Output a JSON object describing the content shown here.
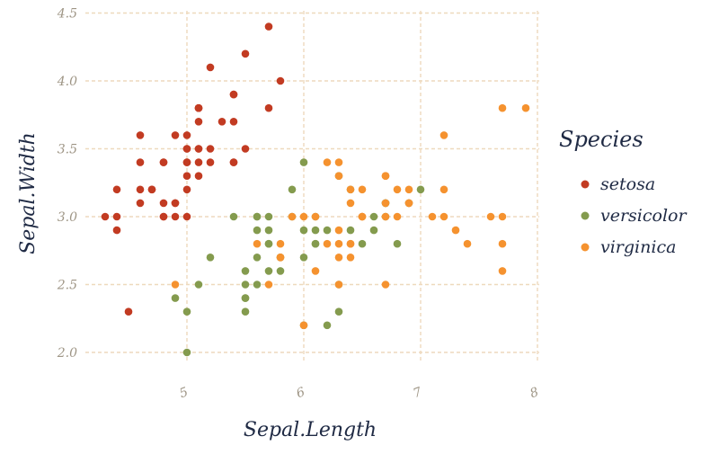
{
  "chart_data": {
    "type": "scatter",
    "xlabel": "Sepal.Length",
    "ylabel": "Sepal.Width",
    "xlim": [
      4.3,
      7.9
    ],
    "ylim": [
      2.0,
      4.4
    ],
    "x_ticks": [
      5,
      6,
      7,
      8
    ],
    "x_tick_labels": [
      "5",
      "6",
      "7",
      "8"
    ],
    "y_ticks": [
      2.0,
      2.5,
      3.0,
      3.5,
      4.0,
      4.5
    ],
    "y_tick_labels": [
      "2.0",
      "2.5",
      "3.0",
      "3.5",
      "4.0",
      "4.5"
    ],
    "grid": true,
    "legend": {
      "title": "Species",
      "position": "right",
      "entries": [
        "setosa",
        "versicolor",
        "virginica"
      ]
    },
    "colors": {
      "setosa": "#c23b22",
      "versicolor": "#849b4e",
      "virginica": "#f5922f",
      "grid": "#eed9bd",
      "tick_text": "#9e9585",
      "title_text": "#1f2a44"
    },
    "series": [
      {
        "name": "setosa",
        "x": [
          5.1,
          4.9,
          4.7,
          4.6,
          5.0,
          5.4,
          4.6,
          5.0,
          4.4,
          4.9,
          5.4,
          4.8,
          4.8,
          4.3,
          5.8,
          5.7,
          5.4,
          5.1,
          5.7,
          5.1,
          5.4,
          5.1,
          4.6,
          5.1,
          4.8,
          5.0,
          5.0,
          5.2,
          5.2,
          4.7,
          4.8,
          5.4,
          5.2,
          5.5,
          4.9,
          5.0,
          5.5,
          4.9,
          4.4,
          5.1,
          5.0,
          4.5,
          4.4,
          5.0,
          5.1,
          4.8,
          5.1,
          4.6,
          5.3,
          5.0
        ],
        "y": [
          3.5,
          3.0,
          3.2,
          3.1,
          3.6,
          3.9,
          3.4,
          3.4,
          2.9,
          3.1,
          3.7,
          3.4,
          3.0,
          3.0,
          4.0,
          4.4,
          3.9,
          3.5,
          3.8,
          3.8,
          3.4,
          3.7,
          3.6,
          3.3,
          3.4,
          3.0,
          3.4,
          3.5,
          3.4,
          3.2,
          3.1,
          3.4,
          4.1,
          4.2,
          3.1,
          3.2,
          3.5,
          3.6,
          3.0,
          3.4,
          3.5,
          2.3,
          3.2,
          3.5,
          3.8,
          3.0,
          3.8,
          3.2,
          3.7,
          3.3
        ]
      },
      {
        "name": "versicolor",
        "x": [
          7.0,
          6.4,
          6.9,
          5.5,
          6.5,
          5.7,
          6.3,
          4.9,
          6.6,
          5.2,
          5.0,
          5.9,
          6.0,
          6.1,
          5.6,
          6.7,
          5.6,
          5.8,
          6.2,
          5.6,
          5.9,
          6.1,
          6.3,
          6.1,
          6.4,
          6.6,
          6.8,
          6.7,
          6.0,
          5.7,
          5.5,
          5.5,
          5.8,
          6.0,
          5.4,
          6.0,
          6.7,
          6.3,
          5.6,
          5.5,
          5.5,
          6.1,
          5.8,
          5.0,
          5.6,
          5.7,
          5.7,
          6.2,
          5.1,
          5.7
        ],
        "y": [
          3.2,
          3.2,
          3.1,
          2.3,
          2.8,
          2.8,
          3.3,
          2.4,
          2.9,
          2.7,
          2.0,
          3.0,
          2.2,
          2.9,
          2.9,
          3.1,
          3.0,
          2.7,
          2.2,
          2.5,
          3.2,
          2.8,
          2.5,
          2.8,
          2.9,
          3.0,
          2.8,
          3.0,
          2.9,
          2.6,
          2.4,
          2.4,
          2.7,
          2.7,
          3.0,
          3.4,
          3.1,
          2.3,
          3.0,
          2.5,
          2.6,
          3.0,
          2.6,
          2.3,
          2.7,
          3.0,
          2.9,
          2.9,
          2.5,
          2.8
        ]
      },
      {
        "name": "virginica",
        "x": [
          6.3,
          5.8,
          7.1,
          6.3,
          6.5,
          7.6,
          4.9,
          7.3,
          6.7,
          7.2,
          6.5,
          6.4,
          6.8,
          5.7,
          5.8,
          6.4,
          6.5,
          7.7,
          7.7,
          6.0,
          6.9,
          5.6,
          7.7,
          6.3,
          6.7,
          7.2,
          6.2,
          6.1,
          6.4,
          7.2,
          7.4,
          7.9,
          6.4,
          6.3,
          6.1,
          7.7,
          6.3,
          6.4,
          6.0,
          6.9,
          6.7,
          6.9,
          5.8,
          6.8,
          6.7,
          6.7,
          6.3,
          6.5,
          6.2,
          5.9
        ],
        "y": [
          3.3,
          2.7,
          3.0,
          2.9,
          3.0,
          3.0,
          2.5,
          2.9,
          2.5,
          3.6,
          3.2,
          2.7,
          3.0,
          2.5,
          2.8,
          3.2,
          3.0,
          3.8,
          2.6,
          2.2,
          3.2,
          2.8,
          2.8,
          2.7,
          3.3,
          3.2,
          2.8,
          3.0,
          2.8,
          3.0,
          2.8,
          3.8,
          2.8,
          2.8,
          2.6,
          3.0,
          3.4,
          3.1,
          3.0,
          3.1,
          3.1,
          3.1,
          2.7,
          3.2,
          3.3,
          3.0,
          2.5,
          3.0,
          3.4,
          3.0
        ]
      }
    ]
  }
}
